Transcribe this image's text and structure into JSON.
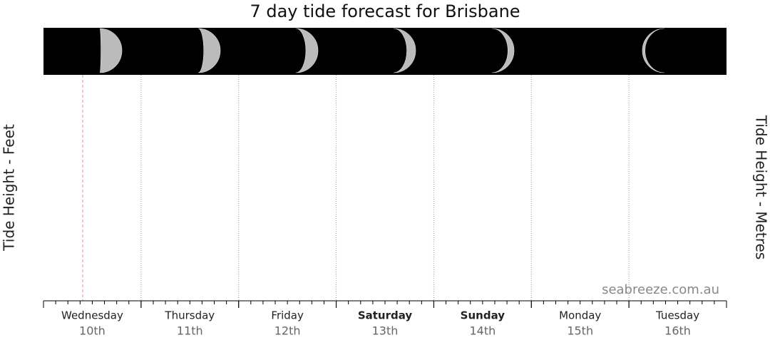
{
  "chart_data": {
    "type": "line",
    "title": "7 day tide forecast for Brisbane",
    "y_label": "Tide Height - Feet",
    "y2_label": "Tide Height - Metres",
    "categories": [
      "Wednesday",
      "Thursday",
      "Friday",
      "Saturday",
      "Sunday",
      "Monday",
      "Tuesday"
    ],
    "category_dates": [
      "10th",
      "11th",
      "12th",
      "13th",
      "14th",
      "15th",
      "16th"
    ],
    "watermark": "seabreeze.com.au"
  }
}
